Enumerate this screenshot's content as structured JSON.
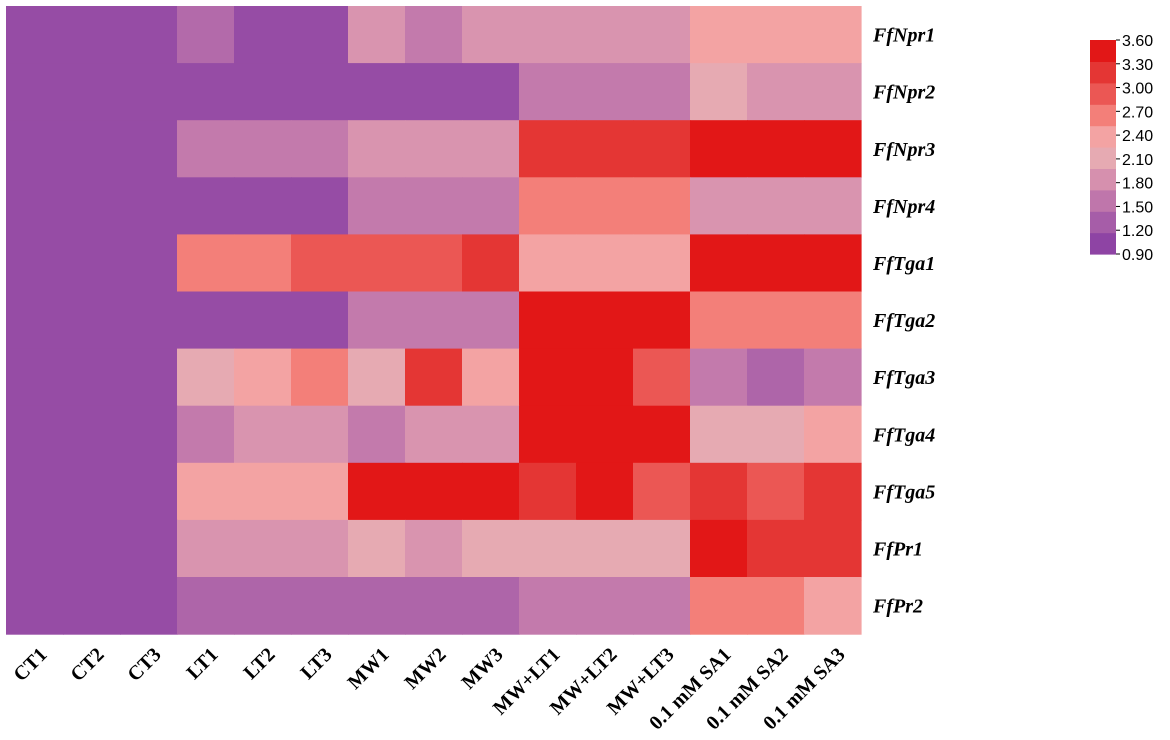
{
  "chart_data": {
    "type": "heatmap",
    "title": "",
    "xlabel": "",
    "ylabel": "",
    "columns": [
      "CT1",
      "CT2",
      "CT3",
      "LT1",
      "LT2",
      "LT3",
      "MW1",
      "MW2",
      "MW3",
      "MW+LT1",
      "MW+LT2",
      "MW+LT3",
      "0.1 mM SA1",
      "0.1 mM SA2",
      "0.1 mM SA3"
    ],
    "rows": [
      "FfNpr1",
      "FfNpr2",
      "FfNpr3",
      "FfNpr4",
      "FfTga1",
      "FfTga2",
      "FfTga3",
      "FfTga4",
      "FfTga5",
      "FfPr1",
      "FfPr2"
    ],
    "values": [
      [
        1.0,
        1.0,
        1.0,
        1.35,
        1.0,
        1.0,
        1.85,
        1.55,
        1.85,
        1.85,
        1.85,
        1.85,
        2.4,
        2.4,
        2.4
      ],
      [
        1.0,
        1.0,
        1.0,
        1.0,
        1.0,
        1.0,
        1.0,
        1.0,
        1.0,
        1.55,
        1.55,
        1.55,
        2.1,
        1.85,
        1.85
      ],
      [
        1.0,
        1.0,
        1.0,
        1.55,
        1.55,
        1.55,
        1.85,
        1.85,
        1.85,
        3.3,
        3.3,
        3.3,
        3.6,
        3.6,
        3.6
      ],
      [
        1.0,
        1.0,
        1.0,
        1.0,
        1.0,
        1.0,
        1.55,
        1.55,
        1.55,
        2.7,
        2.7,
        2.7,
        1.85,
        1.85,
        1.85
      ],
      [
        1.0,
        1.0,
        1.0,
        2.7,
        2.7,
        3.0,
        3.0,
        3.0,
        3.3,
        2.4,
        2.4,
        2.4,
        3.6,
        3.6,
        3.6
      ],
      [
        1.0,
        1.0,
        1.0,
        1.0,
        1.0,
        1.0,
        1.55,
        1.55,
        1.55,
        3.6,
        3.6,
        3.6,
        2.7,
        2.7,
        2.7
      ],
      [
        1.0,
        1.0,
        1.0,
        2.1,
        2.4,
        2.7,
        2.1,
        3.3,
        2.4,
        3.6,
        3.6,
        3.0,
        1.55,
        1.3,
        1.55
      ],
      [
        1.0,
        1.0,
        1.0,
        1.55,
        1.85,
        1.85,
        1.55,
        1.85,
        1.85,
        3.6,
        3.6,
        3.6,
        2.1,
        2.1,
        2.4
      ],
      [
        1.0,
        1.0,
        1.0,
        2.4,
        2.4,
        2.4,
        3.6,
        3.6,
        3.6,
        3.3,
        3.6,
        3.0,
        3.3,
        3.0,
        3.3
      ],
      [
        1.0,
        1.0,
        1.0,
        1.85,
        1.85,
        1.85,
        2.1,
        1.85,
        2.1,
        2.1,
        2.1,
        2.1,
        3.6,
        3.3,
        3.3
      ],
      [
        1.0,
        1.0,
        1.0,
        1.3,
        1.3,
        1.3,
        1.3,
        1.3,
        1.3,
        1.55,
        1.55,
        1.55,
        2.7,
        2.7,
        2.4
      ]
    ],
    "colorbar": {
      "min": 0.9,
      "max": 3.6,
      "ticks": [
        "3.60",
        "3.30",
        "3.00",
        "2.70",
        "2.40",
        "2.10",
        "1.80",
        "1.50",
        "1.20",
        "0.90"
      ],
      "colors": [
        "#8e44a4",
        "#a65da8",
        "#bf76ab",
        "#d690ae",
        "#e6aab2",
        "#f3a3a3",
        "#f37f79",
        "#eb5754",
        "#e43634",
        "#e21717"
      ],
      "placement": "right"
    },
    "grid": false,
    "legend": "right"
  }
}
